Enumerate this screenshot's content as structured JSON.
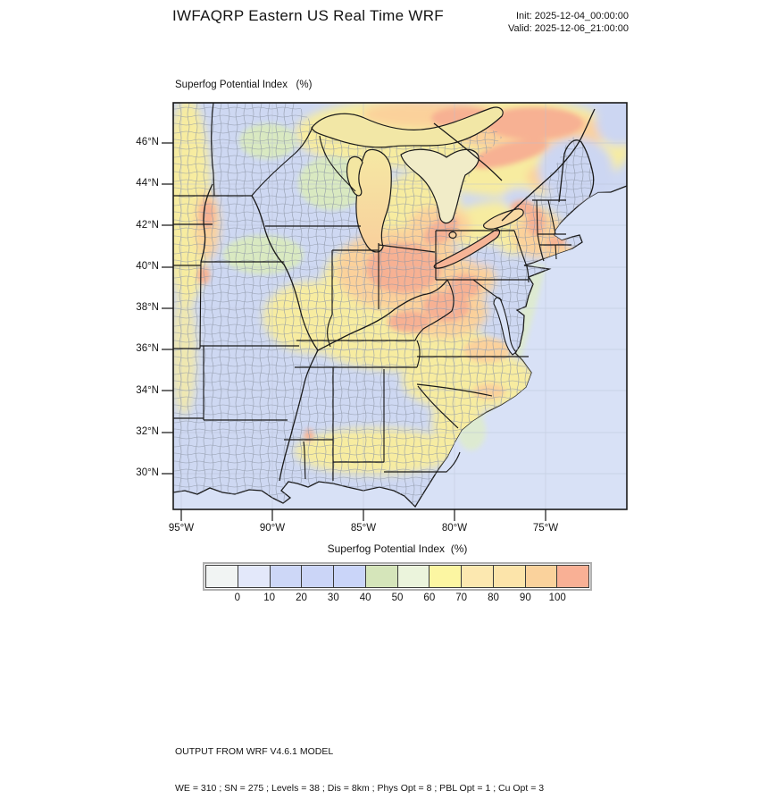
{
  "header": {
    "title": "IWFAQRP Eastern US Real Time WRF",
    "init_label": "Init: 2025-12-04_00:00:00",
    "valid_label": "Valid: 2025-12-06_21:00:00"
  },
  "map": {
    "field_label": "Superfog Potential Index   (%)",
    "lat_ticks": [
      "46°N",
      "44°N",
      "42°N",
      "40°N",
      "38°N",
      "36°N",
      "34°N",
      "32°N",
      "30°N"
    ],
    "lon_ticks": [
      "95°W",
      "90°W",
      "85°W",
      "80°W",
      "75°W"
    ]
  },
  "colorbar": {
    "title": "Superfog Potential Index  (%)",
    "tick_labels": [
      "0",
      "10",
      "20",
      "30",
      "40",
      "50",
      "60",
      "70",
      "80",
      "90",
      "100"
    ],
    "colors": [
      "#f1f4f3",
      "#e3e8fa",
      "#cdd7f7",
      "#cbd5f7",
      "#cad5f9",
      "#d5e5ba",
      "#ebf4dc",
      "#fcf6a2",
      "#fce8b0",
      "#fce4aa",
      "#fad29c",
      "#f9b095"
    ]
  },
  "legend_colors": {
    "ocean": "#d8e1f6",
    "land_base": "#ced8f2",
    "low": "#cad5f9",
    "mid_green": "#d9e9c1",
    "high_yellow": "#f7eca0",
    "higher_orange": "#fbd19b",
    "highest_salmon": "#f7b193"
  },
  "footer": {
    "line1": "OUTPUT FROM WRF V4.6.1 MODEL",
    "line2": "WE = 310 ; SN = 275 ; Levels = 38 ; Dis = 8km ; Phys Opt = 8 ; PBL Opt = 1 ; Cu Opt = 3"
  }
}
